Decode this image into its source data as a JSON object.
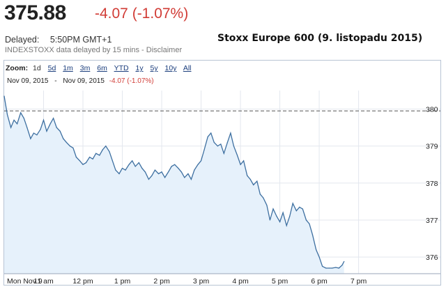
{
  "quote": {
    "price": "375.88",
    "change": "-4.07 (-1.07%)",
    "delayed_label": "Delayed:",
    "delayed_time": "5:50PM GMT+1",
    "source_note": "INDEXSTOXX data delayed by 15 mins - Disclaimer"
  },
  "overlay_title": "Stoxx Europe 600 (9. listopadu 2015)",
  "zoom": {
    "label": "Zoom:",
    "options": [
      "1d",
      "5d",
      "1m",
      "3m",
      "6m",
      "YTD",
      "1y",
      "5y",
      "10y",
      "All"
    ]
  },
  "range": {
    "from": "Nov 09, 2015",
    "separator": "-",
    "to": "Nov 09, 2015",
    "change": "-4.07 (-1.07%)"
  },
  "colors": {
    "line": "#3d6fa0",
    "fill": "#e6f1fb",
    "negative": "#d13b35",
    "grid": "#e3e7ee"
  },
  "chart_data": {
    "type": "area",
    "title": "Stoxx Europe 600 (9. listopadu 2015)",
    "xlabel": "",
    "ylabel": "",
    "x_ticks": [
      "Mon Nov 9",
      "11 am",
      "12 pm",
      "1 pm",
      "2 pm",
      "3 pm",
      "4 pm",
      "5 pm",
      "6 pm",
      "7 pm"
    ],
    "y_ticks": [
      376,
      377,
      378,
      379,
      380
    ],
    "xlim": [
      9.0,
      19.6
    ],
    "ylim": [
      375.55,
      380.5
    ],
    "reference_line": 379.95,
    "grid": true,
    "series": [
      {
        "x": [
          9.0,
          9.08,
          9.17,
          9.25,
          9.33,
          9.42,
          9.5,
          9.58,
          9.67,
          9.75,
          9.83,
          9.92,
          10.0,
          10.08,
          10.17,
          10.25,
          10.33,
          10.42,
          10.5,
          10.58,
          10.67,
          10.75,
          10.83,
          10.92,
          11.0,
          11.08,
          11.17,
          11.25,
          11.33,
          11.42,
          11.5,
          11.58,
          11.67,
          11.75,
          11.83,
          11.92,
          12.0,
          12.08,
          12.17,
          12.25,
          12.33,
          12.42,
          12.5,
          12.58,
          12.67,
          12.75,
          12.83,
          12.92,
          13.0,
          13.08,
          13.17,
          13.25,
          13.33,
          13.42,
          13.5,
          13.58,
          13.67,
          13.75,
          13.83,
          13.92,
          14.0,
          14.08,
          14.17,
          14.25,
          14.33,
          14.42,
          14.5,
          14.58,
          14.67,
          14.75,
          14.83,
          14.92,
          15.0,
          15.08,
          15.17,
          15.25,
          15.33,
          15.42,
          15.5,
          15.58,
          15.67,
          15.75,
          15.83,
          15.92,
          16.0,
          16.08,
          16.17,
          16.25,
          16.33,
          16.42,
          16.5,
          16.58,
          16.67,
          16.75,
          16.83,
          16.92,
          17.0,
          17.08,
          17.17,
          17.25,
          17.33,
          17.42,
          17.5,
          17.58,
          17.63
        ],
        "values": [
          380.35,
          379.85,
          379.5,
          379.7,
          379.6,
          379.9,
          379.75,
          379.5,
          379.2,
          379.35,
          379.3,
          379.45,
          379.7,
          379.4,
          379.6,
          379.75,
          379.5,
          379.4,
          379.2,
          379.1,
          379.0,
          378.95,
          378.7,
          378.6,
          378.5,
          378.55,
          378.7,
          378.65,
          378.8,
          378.75,
          378.9,
          379.0,
          378.85,
          378.6,
          378.35,
          378.25,
          378.4,
          378.35,
          378.5,
          378.6,
          378.45,
          378.55,
          378.4,
          378.3,
          378.1,
          378.2,
          378.35,
          378.25,
          378.3,
          378.15,
          378.3,
          378.45,
          378.5,
          378.4,
          378.3,
          378.15,
          378.25,
          378.1,
          378.35,
          378.5,
          378.6,
          378.9,
          379.25,
          379.35,
          379.1,
          379.0,
          379.05,
          378.8,
          379.1,
          379.35,
          379.0,
          378.75,
          378.5,
          378.6,
          378.2,
          378.1,
          377.95,
          378.05,
          377.7,
          377.6,
          377.4,
          377.0,
          377.3,
          377.1,
          376.95,
          377.2,
          376.85,
          377.1,
          377.45,
          377.25,
          377.35,
          377.3,
          377.0,
          376.9,
          376.6,
          376.2,
          376.0,
          375.75,
          375.7,
          375.7,
          375.7,
          375.72,
          375.7,
          375.78,
          375.88
        ]
      }
    ]
  }
}
